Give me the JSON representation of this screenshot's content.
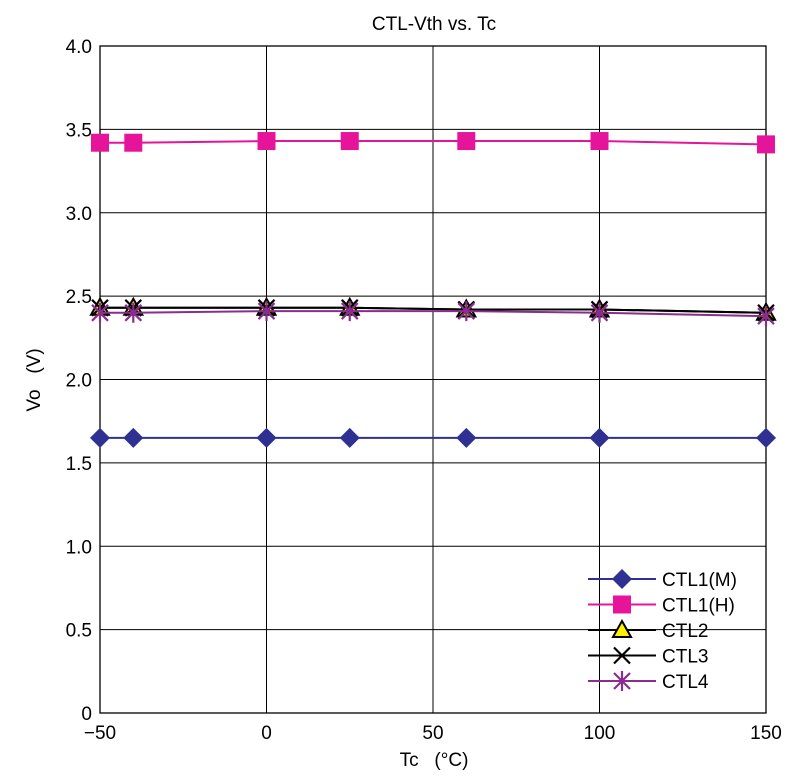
{
  "chart_data": {
    "type": "line",
    "title": "CTL-Vth vs. Tc",
    "xlabel": "Tc   (°C)",
    "ylabel": "Vo   (V)",
    "xlim": [
      -50,
      150
    ],
    "ylim": [
      0,
      4.0
    ],
    "xticks": [
      -50,
      0,
      50,
      100,
      150
    ],
    "xtick_labels": [
      "−50",
      "0",
      "50",
      "100",
      "150"
    ],
    "yticks": [
      0,
      0.5,
      1.0,
      1.5,
      2.0,
      2.5,
      3.0,
      3.5,
      4.0
    ],
    "ytick_labels": [
      "0",
      "0.5",
      "1.0",
      "1.5",
      "2.0",
      "2.5",
      "3.0",
      "3.5",
      "4.0"
    ],
    "grid": true,
    "legend_position": "bottom-right",
    "x": [
      -50,
      -40,
      0,
      25,
      60,
      100,
      150
    ],
    "series": [
      {
        "name": "CTL1(M)",
        "color": "#2e3192",
        "marker": "diamond",
        "values": [
          1.65,
          1.65,
          1.65,
          1.65,
          1.65,
          1.65,
          1.65
        ]
      },
      {
        "name": "CTL1(H)",
        "color": "#e6149a",
        "marker": "square",
        "values": [
          3.42,
          3.42,
          3.43,
          3.43,
          3.43,
          3.43,
          3.41
        ]
      },
      {
        "name": "CTL2",
        "color": "#000000",
        "marker": "triangle",
        "fill": "#fff200",
        "values": [
          2.43,
          2.43,
          2.43,
          2.43,
          2.42,
          2.42,
          2.4
        ]
      },
      {
        "name": "CTL3",
        "color": "#000000",
        "marker": "x",
        "values": [
          2.43,
          2.43,
          2.43,
          2.43,
          2.42,
          2.42,
          2.4
        ]
      },
      {
        "name": "CTL4",
        "color": "#8a2d8f",
        "marker": "asterisk",
        "values": [
          2.4,
          2.4,
          2.41,
          2.41,
          2.41,
          2.4,
          2.38
        ]
      }
    ]
  }
}
